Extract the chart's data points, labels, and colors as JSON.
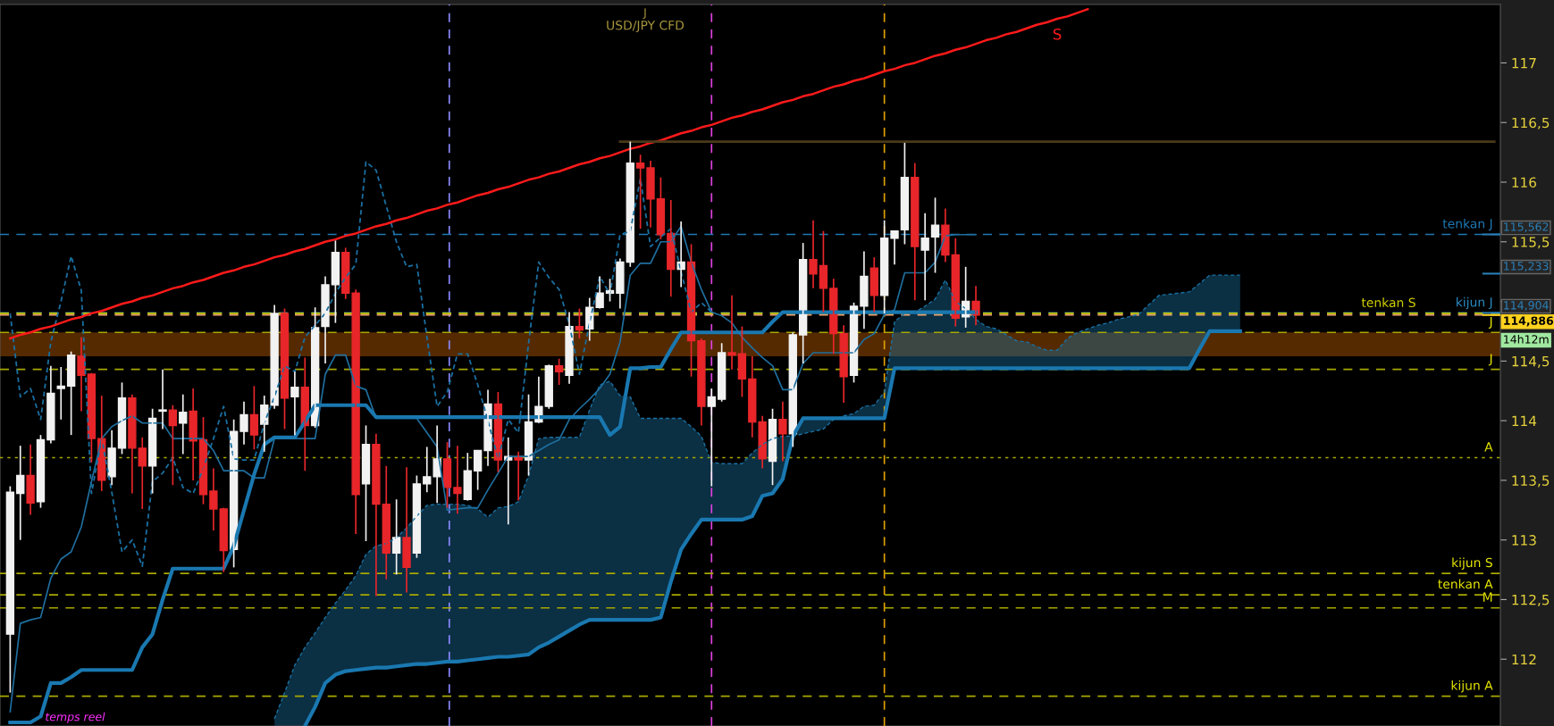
{
  "chart_data": {
    "type": "candlestick",
    "title": "USD/JPY CFD",
    "categories": [
      null,
      null,
      null,
      null,
      null,
      null,
      null,
      null,
      null,
      null,
      null,
      null,
      null,
      null,
      null,
      null,
      null,
      null,
      null,
      null,
      null,
      null,
      null,
      null,
      null,
      null,
      null,
      null,
      null,
      null,
      null,
      null,
      null,
      null,
      null,
      null,
      null,
      null,
      null,
      null,
      null,
      null,
      null,
      null,
      null,
      null,
      null,
      null,
      null,
      null,
      null,
      null,
      null,
      null,
      null,
      null,
      null,
      null,
      null,
      null,
      null,
      null,
      null,
      null,
      null,
      null,
      null,
      null,
      null,
      null,
      null,
      null,
      null,
      null,
      null,
      null,
      null,
      null,
      null,
      null,
      null,
      null,
      null,
      null,
      null,
      null,
      null,
      null,
      null,
      null,
      null,
      null,
      null,
      null,
      null,
      null,
      null,
      null,
      null,
      null,
      null,
      null,
      null,
      null,
      null,
      null,
      null,
      null,
      null,
      null,
      null,
      null,
      null,
      null,
      null,
      null,
      null,
      null,
      null,
      null,
      null,
      null,
      null,
      null,
      null,
      null,
      null,
      null,
      null,
      null,
      null,
      null,
      null,
      null,
      null,
      null,
      null,
      null,
      null,
      null,
      null,
      null,
      null,
      null,
      null,
      null,
      null
    ],
    "ohlc": [
      [
        112.21,
        113.45,
        111.72,
        113.4
      ],
      [
        113.39,
        113.79,
        113.0,
        113.54
      ],
      [
        113.54,
        113.8,
        113.21,
        113.31
      ],
      [
        113.32,
        113.88,
        113.27,
        113.84
      ],
      [
        113.84,
        114.46,
        113.81,
        114.23
      ],
      [
        114.27,
        114.45,
        114.01,
        114.29
      ],
      [
        114.29,
        114.58,
        113.88,
        114.55
      ],
      [
        114.54,
        114.7,
        114.08,
        114.38
      ],
      [
        114.39,
        114.4,
        113.65,
        113.85
      ],
      [
        113.85,
        114.21,
        113.41,
        113.5
      ],
      [
        113.53,
        113.92,
        113.46,
        113.77
      ],
      [
        113.77,
        114.32,
        113.72,
        114.19
      ],
      [
        114.19,
        114.22,
        113.39,
        113.77
      ],
      [
        113.77,
        113.86,
        113.26,
        113.62
      ],
      [
        113.62,
        114.1,
        113.39,
        114.02
      ],
      [
        114.08,
        114.43,
        113.93,
        114.09
      ],
      [
        114.09,
        114.13,
        113.46,
        113.96
      ],
      [
        113.98,
        114.22,
        113.72,
        114.07
      ],
      [
        114.08,
        114.27,
        113.5,
        113.83
      ],
      [
        113.84,
        114.03,
        113.3,
        113.38
      ],
      [
        113.41,
        113.6,
        113.08,
        113.26
      ],
      [
        113.26,
        113.27,
        112.73,
        112.91
      ],
      [
        112.92,
        114.01,
        112.77,
        113.91
      ],
      [
        113.91,
        114.16,
        113.8,
        114.05
      ],
      [
        114.05,
        114.29,
        113.76,
        113.88
      ],
      [
        113.97,
        114.21,
        113.74,
        114.13
      ],
      [
        114.13,
        114.97,
        114.1,
        114.9
      ],
      [
        114.9,
        114.94,
        113.93,
        114.19
      ],
      [
        114.2,
        114.41,
        113.88,
        114.28
      ],
      [
        114.28,
        114.53,
        113.58,
        113.96
      ],
      [
        113.96,
        114.95,
        113.94,
        114.78
      ],
      [
        114.79,
        115.21,
        114.48,
        115.14
      ],
      [
        115.14,
        115.51,
        114.82,
        115.41
      ],
      [
        115.41,
        115.45,
        115.02,
        115.07
      ],
      [
        115.07,
        115.1,
        113.05,
        113.38
      ],
      [
        113.47,
        113.96,
        112.99,
        113.8
      ],
      [
        113.8,
        113.89,
        112.53,
        113.3
      ],
      [
        113.3,
        113.62,
        112.67,
        112.89
      ],
      [
        112.89,
        113.34,
        112.71,
        113.02
      ],
      [
        113.02,
        113.61,
        112.56,
        112.77
      ],
      [
        112.89,
        113.54,
        112.85,
        113.47
      ],
      [
        113.47,
        113.78,
        113.4,
        113.53
      ],
      [
        113.53,
        113.96,
        113.31,
        113.68
      ],
      [
        113.68,
        113.82,
        113.27,
        113.44
      ],
      [
        113.44,
        113.79,
        113.22,
        113.39
      ],
      [
        113.34,
        113.73,
        113.33,
        113.58
      ],
      [
        113.58,
        113.75,
        113.42,
        113.75
      ],
      [
        113.75,
        114.26,
        113.62,
        114.14
      ],
      [
        114.14,
        114.24,
        113.57,
        113.67
      ],
      [
        113.67,
        113.86,
        113.13,
        113.7
      ],
      [
        113.7,
        113.74,
        113.33,
        113.67
      ],
      [
        113.67,
        114.22,
        113.54,
        113.99
      ],
      [
        113.99,
        114.37,
        113.98,
        114.12
      ],
      [
        114.12,
        114.47,
        114.1,
        114.46
      ],
      [
        114.46,
        114.52,
        114.3,
        114.41
      ],
      [
        114.38,
        114.91,
        114.31,
        114.79
      ],
      [
        114.79,
        114.94,
        114.69,
        114.76
      ],
      [
        114.77,
        115.03,
        114.67,
        114.95
      ],
      [
        114.95,
        115.21,
        114.94,
        115.07
      ],
      [
        115.07,
        115.19,
        115.0,
        115.09
      ],
      [
        115.07,
        115.36,
        114.94,
        115.33
      ],
      [
        115.33,
        116.34,
        115.29,
        116.16
      ],
      [
        116.16,
        116.23,
        115.61,
        116.12
      ],
      [
        116.12,
        116.18,
        115.62,
        115.86
      ],
      [
        115.86,
        116.04,
        115.52,
        115.56
      ],
      [
        115.57,
        115.85,
        115.04,
        115.27
      ],
      [
        115.27,
        115.67,
        115.12,
        115.33
      ],
      [
        115.33,
        115.48,
        114.37,
        114.67
      ],
      [
        114.67,
        114.69,
        113.96,
        114.12
      ],
      [
        114.12,
        114.27,
        113.45,
        114.2
      ],
      [
        114.18,
        114.65,
        114.16,
        114.57
      ],
      [
        114.57,
        115.05,
        114.43,
        114.55
      ],
      [
        114.56,
        114.79,
        114.2,
        114.35
      ],
      [
        114.35,
        114.54,
        113.86,
        113.99
      ],
      [
        113.99,
        114.04,
        113.6,
        113.68
      ],
      [
        113.66,
        114.1,
        113.46,
        114.01
      ],
      [
        114.01,
        114.16,
        113.66,
        113.89
      ],
      [
        113.89,
        114.74,
        113.78,
        114.72
      ],
      [
        114.72,
        115.49,
        114.48,
        115.35
      ],
      [
        115.35,
        115.68,
        115.11,
        115.23
      ],
      [
        115.3,
        115.59,
        114.91,
        115.11
      ],
      [
        115.11,
        115.19,
        114.56,
        114.73
      ],
      [
        114.73,
        114.8,
        114.15,
        114.37
      ],
      [
        114.38,
        114.99,
        114.32,
        114.96
      ],
      [
        114.96,
        115.42,
        114.77,
        115.21
      ],
      [
        115.28,
        115.37,
        114.91,
        115.05
      ],
      [
        115.05,
        115.68,
        114.9,
        115.53
      ],
      [
        115.53,
        115.59,
        115.31,
        115.59
      ],
      [
        115.6,
        116.33,
        115.48,
        116.04
      ],
      [
        116.04,
        116.16,
        115.01,
        115.46
      ],
      [
        115.43,
        115.74,
        115.01,
        115.53
      ],
      [
        115.54,
        115.87,
        115.24,
        115.64
      ],
      [
        115.64,
        115.78,
        115.33,
        115.39
      ],
      [
        115.39,
        115.53,
        114.79,
        114.86
      ],
      [
        114.87,
        115.29,
        114.78,
        115.0
      ],
      [
        115.0,
        115.13,
        114.8,
        114.886
      ],
      null,
      null,
      null,
      null,
      null,
      null,
      null,
      null,
      null,
      null,
      null,
      null,
      null,
      null,
      null,
      null,
      null,
      null,
      null,
      null,
      null,
      null,
      null,
      null,
      null,
      null,
      null,
      null,
      null,
      null,
      null,
      null,
      null,
      null,
      null,
      null,
      null,
      null,
      null,
      null,
      null,
      null,
      null,
      null,
      null,
      null,
      null,
      null,
      null,
      null,
      null
    ],
    "colors": [
      "#f2f2f2",
      "#f2f2f2",
      "#e8262a",
      "#f2f2f2",
      "#f2f2f2",
      "#f2f2f2",
      "#f2f2f2",
      "#e8262a",
      "#e8262a",
      "#e8262a",
      "#f2f2f2",
      "#f2f2f2",
      "#e8262a",
      "#e8262a",
      "#f2f2f2",
      "#f2f2f2",
      "#e8262a",
      "#f2f2f2",
      "#e8262a",
      "#e8262a",
      "#e8262a",
      "#e8262a",
      "#f2f2f2",
      "#f2f2f2",
      "#e8262a",
      "#f2f2f2",
      "#f2f2f2",
      "#e8262a",
      "#f2f2f2",
      "#e8262a",
      "#f2f2f2",
      "#f2f2f2",
      "#f2f2f2",
      "#e8262a",
      "#e8262a",
      "#f2f2f2",
      "#e8262a",
      "#e8262a",
      "#f2f2f2",
      "#e8262a",
      "#f2f2f2",
      "#f2f2f2",
      "#f2f2f2",
      "#e8262a",
      "#e8262a",
      "#f2f2f2",
      "#f2f2f2",
      "#f2f2f2",
      "#e8262a",
      "#f2f2f2",
      "#e8262a",
      "#f2f2f2",
      "#f2f2f2",
      "#f2f2f2",
      "#e8262a",
      "#f2f2f2",
      "#e8262a",
      "#f2f2f2",
      "#f2f2f2",
      "#f2f2f2",
      "#f2f2f2",
      "#f2f2f2",
      "#e8262a",
      "#e8262a",
      "#e8262a",
      "#e8262a",
      "#f2f2f2",
      "#e8262a",
      "#e8262a",
      "#f2f2f2",
      "#f2f2f2",
      "#e8262a",
      "#e8262a",
      "#e8262a",
      "#e8262a",
      "#f2f2f2",
      "#e8262a",
      "#f2f2f2",
      "#f2f2f2",
      "#e8262a",
      "#e8262a",
      "#e8262a",
      "#e8262a",
      "#f2f2f2",
      "#f2f2f2",
      "#e8262a",
      "#f2f2f2",
      "#f2f2f2",
      "#f2f2f2",
      "#e8262a",
      "#f2f2f2",
      "#f2f2f2",
      "#e8262a",
      "#e8262a",
      "#f2f2f2",
      "#e8262a",
      null,
      null,
      null,
      null,
      null,
      null,
      null,
      null,
      null,
      null,
      null,
      null,
      null,
      null,
      null,
      null,
      null,
      null,
      null,
      null,
      null,
      null,
      null,
      null,
      null,
      null,
      null,
      null,
      null,
      null,
      null,
      null,
      null,
      null,
      null,
      null,
      null,
      null,
      null,
      null,
      null,
      null,
      null,
      null,
      null,
      null,
      null,
      null,
      null,
      null,
      null
    ],
    "series": [
      {
        "type": "line",
        "color": "#1f6f9f",
        "line_style": "solid",
        "values": [
          111.56,
          112.3,
          112.33,
          112.35,
          112.68,
          112.84,
          112.9,
          113.11,
          113.49,
          113.85,
          113.95,
          114.0,
          114.04,
          113.98,
          113.98,
          113.98,
          113.85,
          113.85,
          113.85,
          113.85,
          113.75,
          113.58,
          113.58,
          113.58,
          113.52,
          113.52,
          113.85,
          113.85,
          113.85,
          113.85,
          113.85,
          114.39,
          114.55,
          114.55,
          114.29,
          114.26,
          114.02,
          114.02,
          114.02,
          114.02,
          114.02,
          113.9,
          113.78,
          113.25,
          113.26,
          113.27,
          113.27,
          113.42,
          113.56,
          113.7,
          113.7,
          113.7,
          113.75,
          113.8,
          113.84,
          114.01,
          114.1,
          114.18,
          114.27,
          114.39,
          114.66,
          115.22,
          115.32,
          115.32,
          115.5,
          115.5,
          115.63,
          115.33,
          115.1,
          114.91,
          114.88,
          114.82,
          114.7,
          114.61,
          114.53,
          114.46,
          114.26,
          114.26,
          114.48,
          114.57,
          114.57,
          114.57,
          114.57,
          114.57,
          114.68,
          114.73,
          114.89,
          114.93,
          115.24,
          115.24,
          115.24,
          115.33,
          115.55,
          115.56,
          115.56,
          115.56,
          null,
          null,
          null,
          null,
          null,
          null,
          null,
          null,
          null,
          null,
          null,
          null,
          null,
          null,
          null,
          null,
          null,
          null,
          null,
          null,
          null,
          null,
          null,
          null,
          null,
          null,
          null,
          null,
          null,
          null,
          null,
          null,
          null,
          null,
          null,
          null,
          null,
          null,
          null,
          null,
          null,
          null,
          null,
          null,
          null,
          null,
          null,
          null,
          null,
          null,
          null
        ]
      },
      {
        "type": "line",
        "color": "#1a78b0",
        "line_style": "solid",
        "values": [
          111.47,
          111.47,
          111.47,
          111.52,
          111.8,
          111.8,
          111.85,
          111.91,
          111.91,
          111.91,
          111.91,
          111.91,
          111.91,
          112.1,
          112.21,
          112.5,
          112.76,
          112.76,
          112.76,
          112.76,
          112.76,
          112.76,
          112.95,
          113.25,
          113.55,
          113.8,
          113.86,
          113.86,
          113.86,
          113.99,
          114.13,
          114.13,
          114.13,
          114.13,
          114.13,
          114.13,
          114.03,
          114.03,
          114.03,
          114.03,
          114.03,
          114.03,
          114.03,
          114.03,
          114.03,
          114.03,
          114.03,
          114.03,
          114.03,
          114.03,
          114.03,
          114.03,
          114.03,
          114.03,
          114.03,
          114.03,
          114.03,
          114.03,
          114.03,
          113.88,
          113.95,
          114.44,
          114.44,
          114.45,
          114.45,
          114.6,
          114.74,
          114.74,
          114.74,
          114.74,
          114.74,
          114.74,
          114.74,
          114.74,
          114.74,
          114.83,
          114.91,
          114.91,
          114.91,
          114.91,
          114.91,
          114.91,
          114.91,
          114.91,
          114.91,
          114.91,
          114.91,
          114.91,
          114.91,
          114.91,
          114.91,
          114.91,
          114.91,
          114.91,
          114.91,
          114.91,
          null,
          null,
          null,
          null,
          null,
          null,
          null,
          null,
          null,
          null,
          null,
          null,
          null,
          null,
          null,
          null,
          null,
          null,
          null,
          null,
          null,
          null,
          null,
          null,
          null,
          null,
          null,
          null,
          null,
          null,
          null,
          null,
          null,
          null,
          null,
          null,
          null,
          null,
          null,
          null,
          null,
          null,
          null,
          null,
          null,
          null,
          null,
          null,
          null,
          null,
          null
        ]
      },
      {
        "type": "line",
        "color": "#1a6fa0",
        "line_style": "dashed",
        "values": [
          114.9,
          114.2,
          114.27,
          114.01,
          114.66,
          115.0,
          115.38,
          115.09,
          113.39,
          113.85,
          113.4,
          112.9,
          113.0,
          112.78,
          113.49,
          113.56,
          113.69,
          113.44,
          113.39,
          113.6,
          113.85,
          114.12,
          113.68,
          113.67,
          113.67,
          113.98,
          114.2,
          114.46,
          114.41,
          114.7,
          114.8,
          114.9,
          115.07,
          115.2,
          115.31,
          116.17,
          116.1,
          115.8,
          115.5,
          115.29,
          115.31,
          114.7,
          114.12,
          114.24,
          114.56,
          114.56,
          114.3,
          114.0,
          113.68,
          114.01,
          113.9,
          114.65,
          115.33,
          115.2,
          115.1,
          114.81,
          114.39,
          114.82,
          115.21,
          115.06,
          115.56,
          115.59,
          116.03,
          115.46,
          115.54,
          115.61,
          115.25,
          114.91,
          114.99,
          114.91,
          null,
          null,
          null,
          null,
          null,
          null,
          null,
          null,
          null,
          null,
          null,
          null,
          null,
          null,
          null,
          null,
          null,
          null,
          null,
          null,
          null,
          null,
          null,
          null,
          null,
          null,
          null,
          null,
          null,
          null,
          null,
          null,
          null,
          null,
          null,
          null,
          null,
          null,
          null,
          null,
          null,
          null,
          null,
          null,
          null,
          null,
          null,
          null,
          null,
          null,
          null,
          null,
          null,
          null,
          null,
          null,
          null,
          null,
          null,
          null,
          null,
          null,
          null,
          null,
          null,
          null,
          null,
          null,
          null,
          null,
          null,
          null,
          null,
          null,
          null,
          null,
          null
        ]
      },
      {
        "type": "line",
        "color": "#1a6fa0",
        "line_style": "dashed",
        "lower": [
          null,
          null,
          null,
          null,
          null,
          null,
          null,
          null,
          null,
          null,
          null,
          null,
          null,
          null,
          null,
          null,
          null,
          null,
          null,
          null,
          null,
          null,
          null,
          null,
          null,
          null,
          111.44,
          111.44,
          111.44,
          111.44,
          111.6,
          111.8,
          111.87,
          111.9,
          111.91,
          111.92,
          111.93,
          111.93,
          111.94,
          111.95,
          111.96,
          111.96,
          111.97,
          111.98,
          111.98,
          111.99,
          112.0,
          112.01,
          112.02,
          112.02,
          112.03,
          112.04,
          112.1,
          112.14,
          112.19,
          112.24,
          112.29,
          112.33,
          112.33,
          112.33,
          112.33,
          112.33,
          112.33,
          112.33,
          112.35,
          112.65,
          112.92,
          113.05,
          113.17,
          113.17,
          113.17,
          113.17,
          113.17,
          113.2,
          113.37,
          113.39,
          113.51,
          113.87,
          114.02,
          114.02,
          114.02,
          114.02,
          114.02,
          114.02,
          114.02,
          114.02,
          114.02,
          114.44,
          114.44,
          114.44,
          114.44,
          114.44,
          114.44,
          114.44,
          114.44,
          114.44,
          114.44,
          114.44,
          114.44,
          114.44,
          114.44,
          114.44,
          114.44,
          114.44,
          114.44,
          114.44,
          114.44,
          114.44,
          114.44,
          114.44,
          114.44,
          114.44,
          114.44,
          114.44,
          114.44,
          114.44,
          114.44,
          114.6,
          114.75,
          114.75,
          114.75,
          114.75,
          null,
          null,
          null,
          null,
          null,
          null,
          null,
          null,
          null,
          null,
          null,
          null,
          null,
          null,
          null,
          null,
          null,
          null,
          null,
          null,
          null,
          null,
          null,
          null,
          null
        ],
        "upper": [
          null,
          null,
          null,
          null,
          null,
          null,
          null,
          null,
          null,
          null,
          null,
          null,
          null,
          null,
          null,
          null,
          null,
          null,
          null,
          null,
          null,
          null,
          null,
          null,
          null,
          null,
          111.5,
          111.72,
          111.95,
          112.1,
          112.22,
          112.35,
          112.47,
          112.58,
          112.7,
          112.88,
          112.95,
          112.97,
          113.02,
          113.1,
          113.2,
          113.29,
          113.3,
          113.3,
          113.3,
          113.29,
          113.26,
          113.19,
          113.27,
          113.28,
          113.32,
          113.54,
          113.85,
          113.86,
          113.86,
          113.86,
          113.86,
          114.09,
          114.3,
          114.33,
          114.21,
          114.2,
          114.02,
          114.02,
          114.02,
          114.02,
          114.02,
          113.95,
          113.87,
          113.65,
          113.64,
          113.64,
          113.64,
          113.73,
          113.8,
          113.85,
          113.87,
          113.87,
          113.89,
          113.91,
          113.93,
          114.01,
          114.04,
          114.06,
          114.12,
          114.13,
          114.24,
          114.83,
          114.9,
          114.91,
          114.96,
          115.02,
          115.18,
          115.0,
          114.94,
          114.85,
          114.79,
          114.77,
          114.72,
          114.67,
          114.66,
          114.62,
          114.59,
          114.59,
          114.69,
          114.74,
          114.77,
          114.8,
          114.82,
          114.85,
          114.87,
          114.89,
          114.97,
          115.05,
          115.06,
          115.07,
          115.08,
          115.15,
          115.22,
          115.22,
          115.22,
          115.22,
          null,
          null,
          null,
          null,
          null,
          null,
          null,
          null,
          null,
          null,
          null,
          null,
          null,
          null,
          null,
          null,
          null,
          null,
          null,
          null,
          null,
          null,
          null,
          null,
          null
        ],
        "values": [
          null,
          null,
          null,
          null,
          null,
          null,
          null,
          null,
          null,
          null,
          null,
          null,
          null,
          null,
          null,
          null,
          null,
          null,
          null,
          null,
          null,
          null,
          null,
          null,
          null,
          null,
          111.5,
          111.72,
          111.95,
          112.1,
          112.22,
          112.35,
          112.47,
          112.58,
          112.7,
          112.88,
          112.95,
          112.97,
          113.02,
          113.1,
          113.2,
          113.29,
          113.3,
          113.3,
          113.3,
          113.29,
          113.26,
          113.19,
          113.27,
          113.28,
          113.32,
          113.54,
          113.85,
          113.86,
          113.86,
          113.86,
          113.86,
          114.09,
          114.3,
          114.33,
          114.21,
          114.2,
          114.02,
          114.02,
          114.02,
          114.02,
          114.02,
          113.95,
          113.87,
          113.65,
          113.64,
          113.64,
          113.64,
          113.73,
          113.8,
          113.85,
          113.87,
          113.87,
          113.89,
          113.91,
          113.93,
          114.01,
          114.04,
          114.06,
          114.12,
          114.13,
          114.24,
          114.83,
          114.9,
          114.91,
          114.96,
          115.02,
          115.18,
          115.0,
          114.94,
          114.85,
          114.79,
          114.77,
          114.72,
          114.67,
          114.66,
          114.62,
          114.59,
          114.59,
          114.69,
          114.74,
          114.77,
          114.8,
          114.82,
          114.85,
          114.87,
          114.89,
          114.97,
          115.05,
          115.06,
          115.07,
          115.08,
          115.15,
          115.22,
          115.22,
          115.22,
          115.22,
          null,
          null,
          null,
          null,
          null,
          null,
          null,
          null,
          null,
          null,
          null,
          null,
          null,
          null,
          null,
          null,
          null,
          null,
          null,
          null,
          null,
          null,
          null,
          null,
          null
        ]
      },
      {
        "type": "line",
        "color": "#1a78b0",
        "line_style": "solid",
        "values": [
          null,
          null,
          null,
          null,
          null,
          null,
          null,
          null,
          null,
          null,
          null,
          null,
          null,
          null,
          null,
          null,
          null,
          null,
          null,
          null,
          null,
          null,
          null,
          null,
          null,
          null,
          null,
          null,
          null,
          111.44,
          111.6,
          111.8,
          111.87,
          111.9,
          111.91,
          111.92,
          111.93,
          111.93,
          111.94,
          111.95,
          111.96,
          111.96,
          111.97,
          111.98,
          111.98,
          111.99,
          112.0,
          112.01,
          112.02,
          112.02,
          112.03,
          112.04,
          112.1,
          112.14,
          112.19,
          112.24,
          112.29,
          112.33,
          112.33,
          112.33,
          112.33,
          112.33,
          112.33,
          112.33,
          112.35,
          112.65,
          112.92,
          113.05,
          113.17,
          113.17,
          113.17,
          113.17,
          113.17,
          113.2,
          113.37,
          113.39,
          113.51,
          113.87,
          114.02,
          114.02,
          114.02,
          114.02,
          114.02,
          114.02,
          114.02,
          114.02,
          114.02,
          114.44,
          114.44,
          114.44,
          114.44,
          114.44,
          114.44,
          114.44,
          114.44,
          114.44,
          114.44,
          114.44,
          114.44,
          114.44,
          114.44,
          114.44,
          114.44,
          114.44,
          114.44,
          114.44,
          114.44,
          114.44,
          114.44,
          114.44,
          114.44,
          114.44,
          114.44,
          114.44,
          114.44,
          114.44,
          114.44,
          114.6,
          114.75,
          114.75,
          114.75,
          114.75,
          null,
          null,
          null,
          null,
          null,
          null,
          null,
          null,
          null,
          null,
          null,
          null,
          null,
          null,
          null,
          null,
          null,
          null,
          null,
          null,
          null,
          null,
          null,
          null,
          null
        ]
      },
      {
        "type": "line",
        "color": "#ff1a1a",
        "line_style": "solid",
        "values": [
          114.69,
          114.72,
          114.74,
          114.77,
          114.79,
          114.82,
          114.85,
          114.87,
          114.9,
          114.92,
          114.95,
          114.98,
          115.0,
          115.03,
          115.05,
          115.08,
          115.11,
          115.13,
          115.16,
          115.18,
          115.21,
          115.24,
          115.26,
          115.29,
          115.31,
          115.34,
          115.37,
          115.39,
          115.42,
          115.44,
          115.47,
          115.5,
          115.52,
          115.55,
          115.57,
          115.6,
          115.63,
          115.65,
          115.68,
          115.7,
          115.73,
          115.76,
          115.78,
          115.81,
          115.83,
          115.86,
          115.89,
          115.91,
          115.94,
          115.96,
          115.99,
          116.02,
          116.04,
          116.07,
          116.09,
          116.12,
          116.15,
          116.17,
          116.2,
          116.22,
          116.25,
          116.28,
          116.3,
          116.33,
          116.35,
          116.38,
          116.41,
          116.43,
          116.46,
          116.48,
          116.51,
          116.54,
          116.56,
          116.59,
          116.61,
          116.64,
          116.67,
          116.69,
          116.72,
          116.74,
          116.77,
          116.8,
          116.82,
          116.85,
          116.87,
          116.9,
          116.93,
          116.95,
          116.98,
          117.0,
          117.03,
          117.06,
          117.08,
          117.11,
          117.13,
          117.16,
          117.19,
          117.21,
          117.24,
          117.26,
          117.29,
          117.32,
          117.34,
          117.37,
          117.39,
          117.42,
          117.45,
          null,
          null,
          null,
          null,
          null,
          null,
          null,
          null,
          null,
          null,
          null,
          null,
          null,
          null,
          null,
          null,
          null,
          null,
          null,
          null,
          null,
          null,
          null,
          null,
          null,
          null,
          null,
          null,
          null,
          null,
          null,
          null,
          null,
          null,
          null,
          null,
          null,
          null,
          null,
          null
        ]
      },
      {
        "type": "line",
        "color": "#4a3a1a",
        "line_style": "solid",
        "values": [
          null,
          null,
          null,
          null,
          null,
          null,
          null,
          null,
          null,
          null,
          null,
          null,
          null,
          null,
          null,
          null,
          null,
          null,
          null,
          null,
          null,
          null,
          null,
          null,
          null,
          null,
          null,
          null,
          null,
          null,
          null,
          null,
          null,
          null,
          null,
          null,
          null,
          null,
          null,
          null,
          null,
          null,
          null,
          null,
          null,
          null,
          null,
          null,
          null,
          null,
          null,
          null,
          null,
          null,
          null,
          null,
          null,
          null,
          null,
          null,
          116.34,
          116.34,
          116.34,
          116.34,
          116.34,
          116.34,
          116.34,
          116.34,
          116.34,
          116.34,
          116.34,
          116.34,
          116.34,
          116.34,
          116.34,
          116.34,
          116.34,
          116.34,
          116.34,
          116.34,
          116.34,
          116.34,
          116.34,
          116.34,
          116.34,
          116.34,
          116.34,
          116.34,
          116.34,
          116.34,
          116.34,
          116.34,
          116.34,
          116.34,
          116.34,
          116.34,
          116.34,
          116.34,
          116.34,
          116.34,
          116.34,
          116.34,
          116.34,
          116.34,
          116.34,
          116.34,
          116.34,
          116.34,
          116.34,
          116.34,
          116.34,
          116.34,
          116.34,
          116.34,
          116.34,
          116.34,
          116.34,
          116.34,
          116.34,
          116.34,
          116.34,
          116.34,
          116.34,
          116.34,
          116.34,
          116.34,
          116.34,
          116.34,
          116.34,
          116.34,
          116.34,
          116.34,
          116.34,
          116.34,
          116.34,
          116.34,
          116.34,
          116.34,
          116.34,
          116.34,
          116.34,
          116.34,
          116.34,
          116.34,
          116.34,
          116.34,
          116.34
        ]
      }
    ],
    "ylim": [
      111.44,
      117.49
    ],
    "yticks": [
      112,
      {
        "value": 112.5,
        "label": "112,5"
      },
      113,
      {
        "value": 113.5,
        "label": "113,5"
      },
      114,
      {
        "value": 114.5,
        "label": "114,5"
      },
      {
        "value": 115,
        "label": null
      },
      {
        "value": 115.5,
        "label": "115,5"
      },
      116,
      {
        "value": 116.5,
        "label": "116,5"
      },
      117
    ],
    "ref_lines": [
      {
        "axis": "y",
        "value": 115.562,
        "label": "tenkan J",
        "color": "#1f78b4",
        "line_style": "dashed"
      },
      {
        "axis": "y",
        "value": 114.904,
        "label": "kijun J",
        "color": "#2a8ac4",
        "line_style": "dashed"
      },
      {
        "axis": "y",
        "value": 114.9,
        "label": "tenkan S",
        "color": "#d0d000",
        "line_style": "dashed"
      },
      {
        "axis": "y",
        "value": 114.886,
        "label": null,
        "color": "#f0a070",
        "line_style": "dashed"
      },
      {
        "axis": "y",
        "value": 114.74,
        "label": "J",
        "color": "#a8a800",
        "line_style": "dashed"
      },
      {
        "axis": "y",
        "value": 114.43,
        "label": "J",
        "color": "#a8a800",
        "line_style": "dashed"
      },
      {
        "axis": "y",
        "value": 113.69,
        "label": "A",
        "color": "#a8a800",
        "line_style": "dotted"
      },
      {
        "axis": "y",
        "value": 112.72,
        "label": "kijun S",
        "color": "#a8a800",
        "line_style": "dashed"
      },
      {
        "axis": "y",
        "value": 112.54,
        "label": "tenkan A",
        "color": "#a8a800",
        "line_style": "dashed"
      },
      {
        "axis": "y",
        "value": 112.43,
        "label": "M",
        "color": "#a8a800",
        "line_style": "dashed"
      },
      {
        "axis": "y",
        "value": 111.69,
        "label": "kijun A",
        "color": "#a8a800",
        "line_style": "dashed"
      },
      {
        "axis": "y",
        "value": 115.562,
        "label": "115,562",
        "color": "#2a7fb8"
      },
      {
        "axis": "y",
        "value": 115.233,
        "label": "115,233",
        "color": "#2a7fb8"
      },
      {
        "axis": "y",
        "value": 114.904,
        "label": "114,904",
        "color": "#2a7fb8"
      },
      {
        "axis": "y",
        "value": 114.886,
        "label": "114,886",
        "color": "#ffd21e"
      }
    ],
    "bands": [
      {
        "axis": "y",
        "from": 114.54,
        "to": 114.74,
        "color": "#552a00"
      }
    ],
    "annotations": [
      "J",
      "temps reel",
      "14h12m",
      "S"
    ],
    "grid": false,
    "legend": false
  }
}
